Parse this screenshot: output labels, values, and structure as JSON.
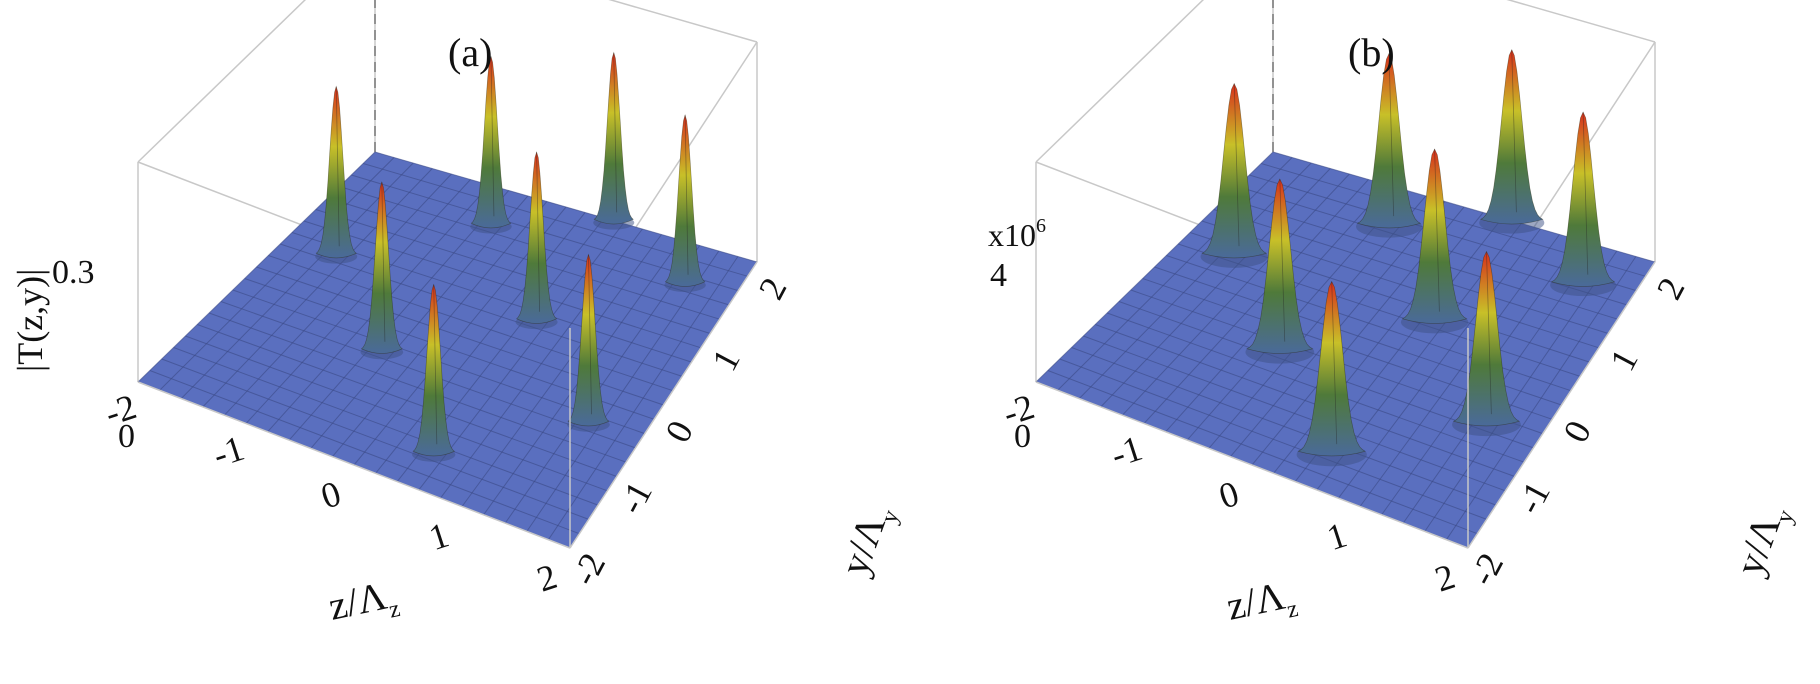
{
  "chart_data": [
    {
      "type": "surface3d",
      "panel_label": "(a)",
      "zlabel": "|T(z,y)|",
      "zmax_label": "0.3",
      "zmin_label": "0",
      "zlim": [
        0,
        0.3
      ],
      "multiplier_label": "",
      "xlabel": "z/Λ",
      "xlabel_sub": "z",
      "ylabel": "y/Λ",
      "ylabel_sub": "y",
      "x_ticks": [
        "-2",
        "-1",
        "0",
        "1",
        "2"
      ],
      "y_ticks": [
        "-2",
        "-1",
        "0",
        "1",
        "2"
      ],
      "xlim": [
        -2,
        2
      ],
      "ylim": [
        -2,
        2
      ],
      "peak_width": 0.1,
      "peaks": [
        {
          "x": -1.5,
          "y": 0.5,
          "z": 0.28
        },
        {
          "x": -0.5,
          "y": 1.5,
          "z": 0.28
        },
        {
          "x": -0.5,
          "y": -0.5,
          "z": 0.28
        },
        {
          "x": 0.5,
          "y": 0.5,
          "z": 0.28
        },
        {
          "x": 0.5,
          "y": -1.5,
          "z": 0.28
        },
        {
          "x": 1.5,
          "y": 1.5,
          "z": 0.28
        },
        {
          "x": 1.5,
          "y": -0.5,
          "z": 0.28
        },
        {
          "x": 0.5,
          "y": 2.0,
          "z": 0.28
        }
      ],
      "colors": {
        "floor": "#5a6fbf",
        "grid": "#3b4a86",
        "low": "#4a6a9a",
        "mid": "#c8c028",
        "high": "#d8301c",
        "box": "#c8c8c8"
      }
    },
    {
      "type": "surface3d",
      "panel_label": "(b)",
      "zlabel": "",
      "zmax_label": "4",
      "zmin_label": "0",
      "zlim": [
        0,
        4
      ],
      "multiplier_label": "x10",
      "multiplier_exp": "6",
      "xlabel": "z/Λ",
      "xlabel_sub": "z",
      "ylabel": "y/Λ",
      "ylabel_sub": "y",
      "x_ticks": [
        "-2",
        "-1",
        "0",
        "1",
        "2"
      ],
      "y_ticks": [
        "-2",
        "-1",
        "0",
        "1",
        "2"
      ],
      "xlim": [
        -2,
        2
      ],
      "ylim": [
        -2,
        2
      ],
      "peak_width": 0.22,
      "peaks": [
        {
          "x": -1.5,
          "y": 0.5,
          "z": 3.8
        },
        {
          "x": -0.5,
          "y": 1.5,
          "z": 3.8
        },
        {
          "x": -0.5,
          "y": -0.5,
          "z": 3.8
        },
        {
          "x": 0.5,
          "y": 0.5,
          "z": 3.8
        },
        {
          "x": 0.5,
          "y": -1.5,
          "z": 3.8
        },
        {
          "x": 1.5,
          "y": 1.5,
          "z": 3.8
        },
        {
          "x": 1.5,
          "y": -0.5,
          "z": 3.8
        },
        {
          "x": 0.5,
          "y": 2.0,
          "z": 3.8
        }
      ],
      "colors": {
        "floor": "#5a6fbf",
        "grid": "#3b4a86",
        "low": "#4a6a9a",
        "mid": "#c8c028",
        "high": "#d8301c",
        "box": "#c8c8c8"
      }
    }
  ]
}
